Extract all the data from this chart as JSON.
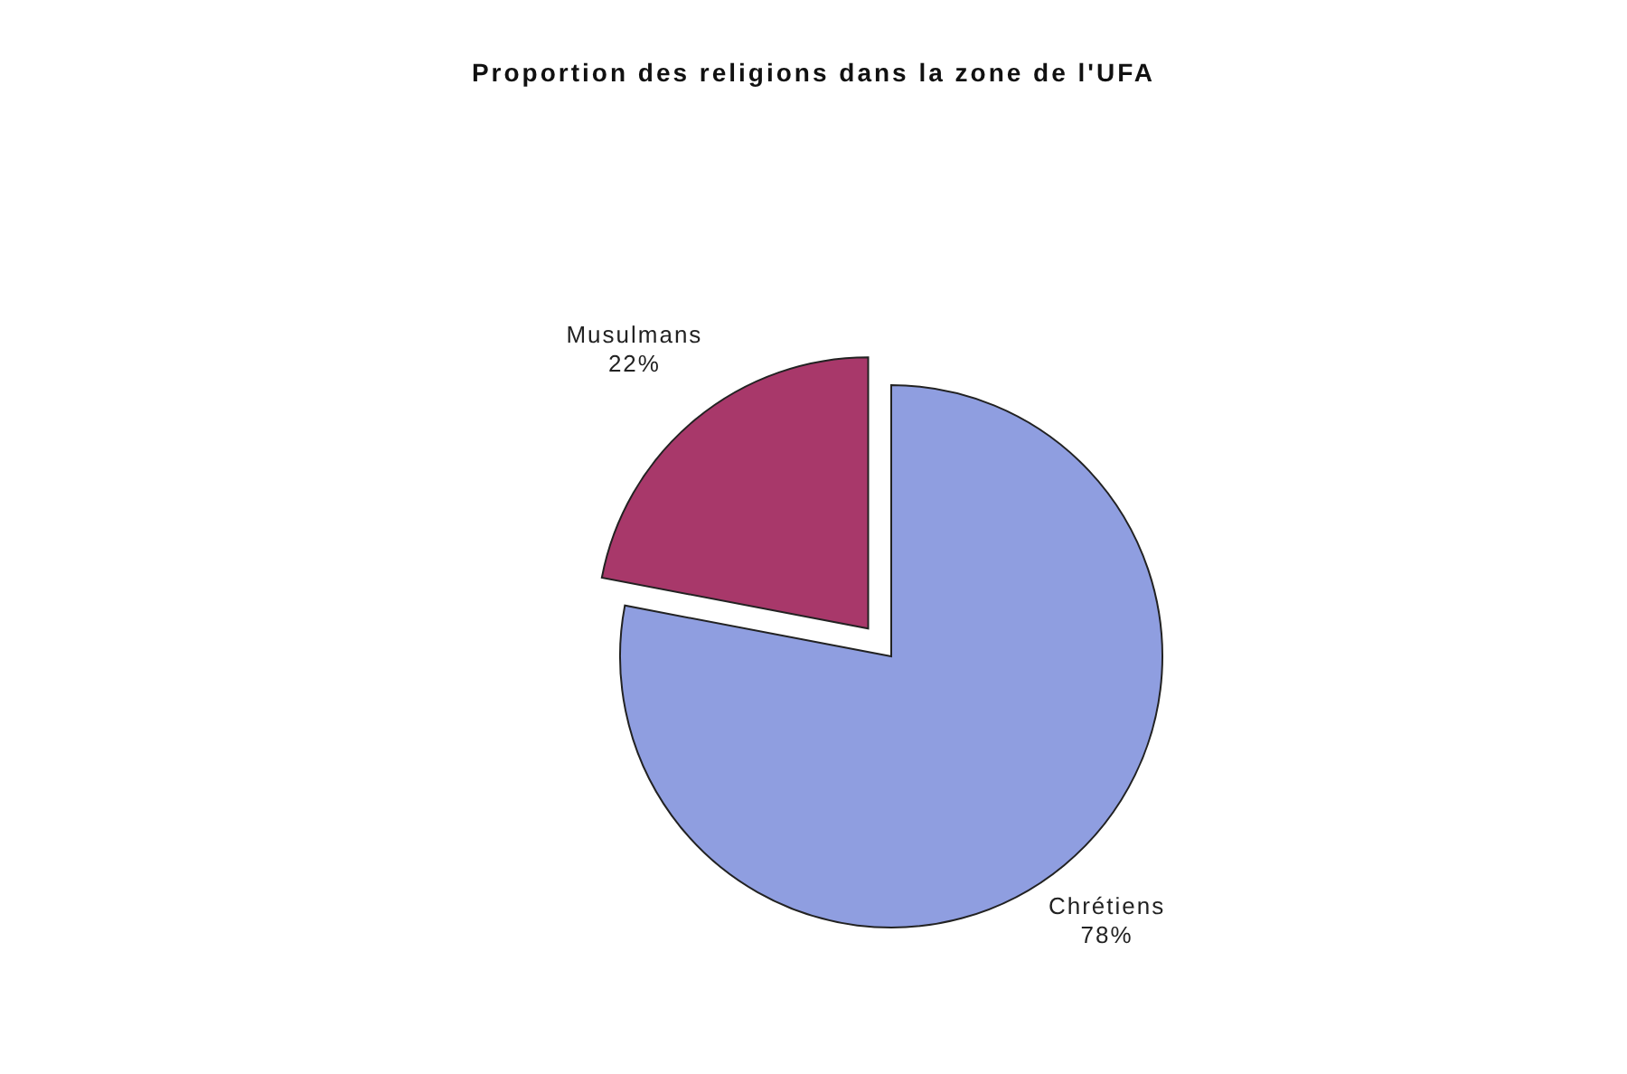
{
  "chart_data": {
    "type": "pie",
    "title": "Proportion des religions dans la zone de l'UFA",
    "categories": [
      "Chrétiens",
      "Musulmans"
    ],
    "values": [
      78,
      22
    ],
    "value_labels": [
      "78%",
      "22%"
    ],
    "colors": [
      "#8f9ee0",
      "#a8386a"
    ],
    "legend": false
  }
}
